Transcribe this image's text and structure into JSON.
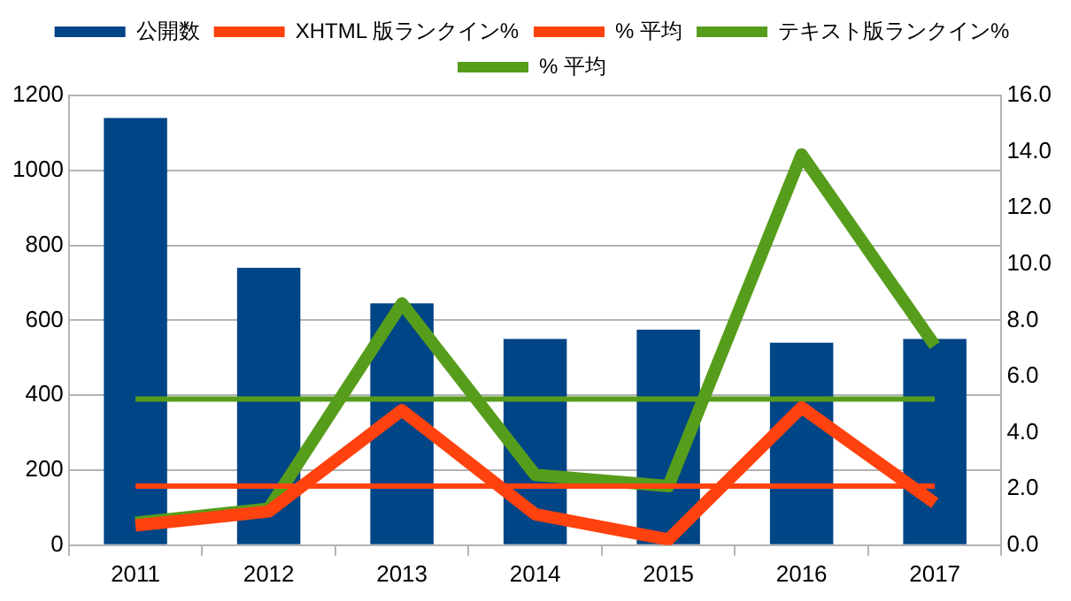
{
  "chart_data": {
    "type": "bar",
    "categories": [
      "2011",
      "2012",
      "2013",
      "2014",
      "2015",
      "2016",
      "2017"
    ],
    "series": [
      {
        "name": "公開数",
        "color": "#004586",
        "values": [
          1140,
          740,
          645,
          550,
          575,
          540,
          550
        ]
      },
      {
        "name": "XHTML 版ランクイン%",
        "type": "line",
        "axis": "y2",
        "color": "#ff420e",
        "values": [
          0.7,
          1.2,
          4.8,
          1.1,
          0.2,
          4.9,
          1.5
        ]
      },
      {
        "name": "% 平均",
        "type": "line",
        "axis": "y2",
        "color": "#ff420e",
        "values": [
          2.1,
          2.1,
          2.1,
          2.1,
          2.1,
          2.1,
          2.1
        ]
      },
      {
        "name": "テキスト版ランクイン%",
        "type": "line",
        "axis": "y2",
        "color": "#579d1c",
        "values": [
          0.8,
          1.3,
          8.6,
          2.5,
          2.1,
          13.9,
          7.1
        ]
      },
      {
        "name": "% 平均",
        "type": "line",
        "axis": "y2",
        "color": "#579d1c",
        "values": [
          5.2,
          5.2,
          5.2,
          5.2,
          5.2,
          5.2,
          5.2
        ]
      }
    ],
    "ylim": [
      0,
      1200
    ],
    "yticks": [
      0,
      200,
      400,
      600,
      800,
      1000,
      1200
    ],
    "y2lim": [
      0,
      16
    ],
    "y2ticks": [
      {
        "value": 0,
        "label": "0.0"
      },
      {
        "value": 2,
        "label": "2.0"
      },
      {
        "value": 4,
        "label": "4.0"
      },
      {
        "value": 6,
        "label": "6.0"
      },
      {
        "value": 8,
        "label": "8.0"
      },
      {
        "value": 10,
        "label": "10.0"
      },
      {
        "value": 12,
        "label": "12.0"
      },
      {
        "value": 14,
        "label": "14.0"
      },
      {
        "value": 16,
        "label": "16.0"
      }
    ],
    "grid": "y",
    "legend": "top",
    "marker": "none"
  }
}
